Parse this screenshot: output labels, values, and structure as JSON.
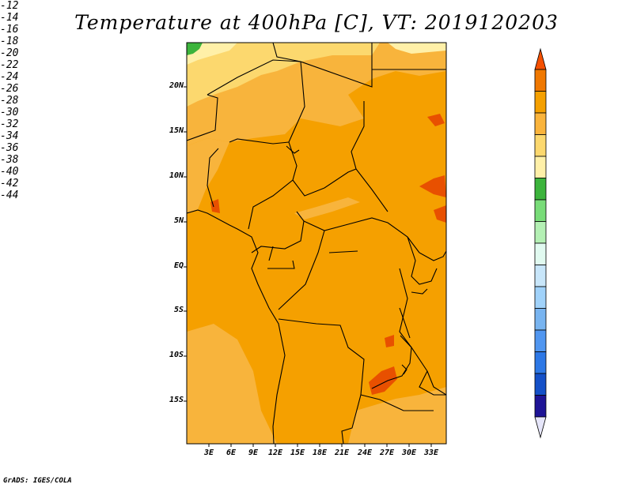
{
  "title": "Temperature at 400hPa [C], VT: 2019120203",
  "credit": "GrADS: IGES/COLA",
  "lat_labels": [
    "20N",
    "15N",
    "10N",
    "5N",
    "EQ",
    "5S",
    "10S",
    "15S"
  ],
  "lon_labels": [
    "3E",
    "6E",
    "9E",
    "12E",
    "15E",
    "18E",
    "21E",
    "24E",
    "27E",
    "30E",
    "33E"
  ],
  "colorbar": {
    "labels": [
      "-12",
      "-14",
      "-16",
      "-18",
      "-20",
      "-22",
      "-24",
      "-26",
      "-28",
      "-30",
      "-32",
      "-34",
      "-36",
      "-38",
      "-40",
      "-42",
      "-44"
    ],
    "colors": [
      "#e85000",
      "#f07800",
      "#f5a000",
      "#fab43c",
      "#fcd86e",
      "#fff0a8",
      "#3cb43c",
      "#78dc78",
      "#b4f0b4",
      "#e1faf0",
      "#c8e6fa",
      "#a0d2fa",
      "#78b4f0",
      "#5096f0",
      "#2d78e6",
      "#1450c8",
      "#1e1496"
    ],
    "top_arrow_color": "#f55000",
    "bottom_arrow_color": "#e6e6fa"
  },
  "field": {
    "dominant_range": "-16 to -14",
    "colors": {
      "c14": "#f5a000",
      "c16": "#f8b43c",
      "c18": "#fcd86e",
      "c20": "#fff0a8",
      "c12": "#e85000",
      "c24": "#3cb43c"
    }
  }
}
